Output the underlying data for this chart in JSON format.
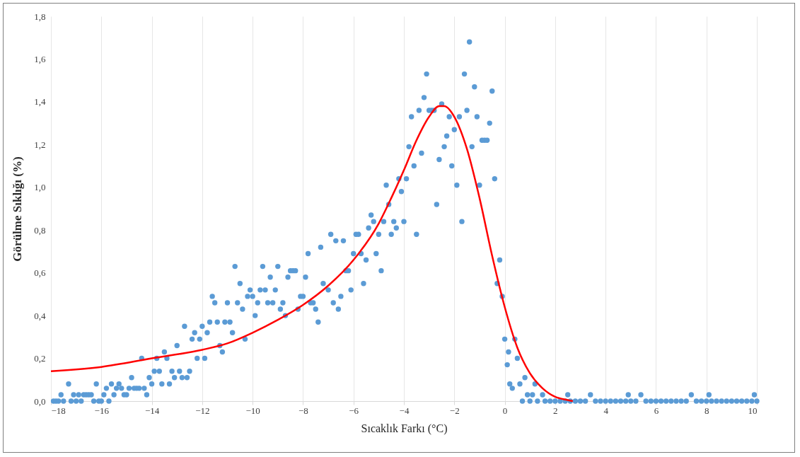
{
  "chart_data": {
    "type": "scatter",
    "xlabel": "Sıcaklık Farkı (°C)",
    "ylabel": "Görülme  Sıklığı (%)",
    "xlim": [
      -18,
      10
    ],
    "xticks": [
      -18,
      -16,
      -14,
      -12,
      -10,
      -8,
      -6,
      -4,
      -2,
      0,
      2,
      4,
      6,
      8,
      10
    ],
    "ylim": [
      0,
      1.8
    ],
    "yticks": [
      {
        "value": 0,
        "label": "0,0"
      },
      {
        "value": 0.2,
        "label": "0,2"
      },
      {
        "value": 0.4,
        "label": "0,4"
      },
      {
        "value": 0.6,
        "label": "0,6"
      },
      {
        "value": 0.8,
        "label": "0,8"
      },
      {
        "value": 1.0,
        "label": "1,0"
      },
      {
        "value": 1.2,
        "label": "1,2"
      },
      {
        "value": 1.4,
        "label": "1,4"
      },
      {
        "value": 1.6,
        "label": "1,6"
      },
      {
        "value": 1.8,
        "label": "1,8"
      }
    ],
    "grid": "x",
    "series": [
      {
        "color": "#5b9bd5",
        "marker": "circle",
        "x": [
          -17.9,
          -17.8,
          -17.7,
          -17.6,
          -17.5,
          -17.3,
          -17.2,
          -17.1,
          -17.0,
          -16.9,
          -16.8,
          -16.7,
          -16.6,
          -16.5,
          -16.4,
          -16.3,
          -16.2,
          -16.1,
          -16.0,
          -15.9,
          -15.8,
          -15.7,
          -15.6,
          -15.5,
          -15.4,
          -15.3,
          -15.2,
          -15.1,
          -15.0,
          -14.9,
          -14.8,
          -14.7,
          -14.6,
          -14.5,
          -14.4,
          -14.3,
          -14.2,
          -14.1,
          -14.0,
          -13.9,
          -13.8,
          -13.7,
          -13.6,
          -13.5,
          -13.4,
          -13.3,
          -13.2,
          -13.1,
          -13.0,
          -12.9,
          -12.8,
          -12.7,
          -12.6,
          -12.5,
          -12.4,
          -12.3,
          -12.2,
          -12.1,
          -12.0,
          -11.9,
          -11.8,
          -11.7,
          -11.6,
          -11.5,
          -11.4,
          -11.3,
          -11.2,
          -11.1,
          -11.0,
          -10.9,
          -10.8,
          -10.7,
          -10.6,
          -10.5,
          -10.4,
          -10.3,
          -10.2,
          -10.1,
          -10.0,
          -9.9,
          -9.8,
          -9.7,
          -9.6,
          -9.5,
          -9.4,
          -9.3,
          -9.2,
          -9.1,
          -9.0,
          -8.9,
          -8.8,
          -8.7,
          -8.6,
          -8.5,
          -8.4,
          -8.3,
          -8.2,
          -8.1,
          -8.0,
          -7.9,
          -7.8,
          -7.7,
          -7.6,
          -7.5,
          -7.4,
          -7.3,
          -7.2,
          -7.0,
          -6.9,
          -6.8,
          -6.7,
          -6.6,
          -6.5,
          -6.4,
          -6.3,
          -6.2,
          -6.1,
          -6.0,
          -5.9,
          -5.8,
          -5.7,
          -5.6,
          -5.5,
          -5.4,
          -5.3,
          -5.2,
          -5.1,
          -5.0,
          -4.9,
          -4.8,
          -4.7,
          -4.6,
          -4.5,
          -4.4,
          -4.3,
          -4.2,
          -4.1,
          -4.0,
          -3.9,
          -3.8,
          -3.7,
          -3.6,
          -3.5,
          -3.4,
          -3.3,
          -3.2,
          -3.1,
          -3.0,
          -2.9,
          -2.8,
          -2.7,
          -2.6,
          -2.5,
          -2.4,
          -2.3,
          -2.2,
          -2.1,
          -2.0,
          -1.9,
          -1.8,
          -1.7,
          -1.6,
          -1.5,
          -1.4,
          -1.3,
          -1.2,
          -1.1,
          -1.0,
          -0.9,
          -0.8,
          -0.7,
          -0.6,
          -0.5,
          -0.4,
          -0.3,
          -0.2,
          -0.1,
          0.0,
          0.1,
          0.15,
          0.2,
          0.3,
          0.4,
          0.5,
          0.6,
          0.7,
          0.8,
          0.9,
          1.0,
          1.1,
          1.2,
          1.3,
          1.5,
          1.6,
          1.8,
          2.0,
          2.2,
          2.4,
          2.5,
          2.6,
          2.8,
          3.0,
          3.2,
          3.4,
          3.6,
          3.8,
          4.0,
          4.2,
          4.4,
          4.6,
          4.8,
          4.9,
          5.0,
          5.2,
          5.4,
          5.6,
          5.8,
          6.0,
          6.2,
          6.4,
          6.6,
          6.8,
          7.0,
          7.2,
          7.4,
          7.6,
          7.8,
          8.0,
          8.1,
          8.2,
          8.4,
          8.6,
          8.8,
          9.0,
          9.2,
          9.4,
          9.6,
          9.8,
          9.9,
          10.0
        ],
        "values": [
          0,
          0,
          0,
          0.03,
          0,
          0.08,
          0,
          0.03,
          0,
          0.03,
          0,
          0.03,
          0.03,
          0.03,
          0.03,
          0,
          0.08,
          0,
          0,
          0.03,
          0.06,
          0,
          0.08,
          0.03,
          0.06,
          0.08,
          0.06,
          0.03,
          0.03,
          0.06,
          0.11,
          0.06,
          0.06,
          0.06,
          0.2,
          0.06,
          0.03,
          0.11,
          0.08,
          0.14,
          0.2,
          0.14,
          0.08,
          0.23,
          0.2,
          0.08,
          0.14,
          0.11,
          0.26,
          0.14,
          0.11,
          0.35,
          0.11,
          0.14,
          0.29,
          0.32,
          0.2,
          0.29,
          0.35,
          0.2,
          0.32,
          0.37,
          0.49,
          0.46,
          0.37,
          0.26,
          0.23,
          0.37,
          0.46,
          0.37,
          0.32,
          0.63,
          0.46,
          0.55,
          0.43,
          0.29,
          0.49,
          0.52,
          0.49,
          0.4,
          0.46,
          0.52,
          0.63,
          0.52,
          0.46,
          0.58,
          0.46,
          0.52,
          0.63,
          0.43,
          0.46,
          0.4,
          0.58,
          0.61,
          0.61,
          0.61,
          0.43,
          0.49,
          0.49,
          0.58,
          0.69,
          0.46,
          0.46,
          0.43,
          0.37,
          0.72,
          0.55,
          0.52,
          0.78,
          0.46,
          0.75,
          0.43,
          0.49,
          0.75,
          0.61,
          0.61,
          0.52,
          0.69,
          0.78,
          0.78,
          0.69,
          0.55,
          0.66,
          0.81,
          0.87,
          0.84,
          0.69,
          0.78,
          0.61,
          0.84,
          1.01,
          0.92,
          0.78,
          0.84,
          0.81,
          1.04,
          0.98,
          0.84,
          1.04,
          1.19,
          1.33,
          1.1,
          0.78,
          1.36,
          1.16,
          1.42,
          1.53,
          1.36,
          1.36,
          1.36,
          0.92,
          1.13,
          1.39,
          1.19,
          1.24,
          1.33,
          1.1,
          1.27,
          1.01,
          1.33,
          0.84,
          1.53,
          1.36,
          1.68,
          1.19,
          1.47,
          1.33,
          1.01,
          1.22,
          1.22,
          1.22,
          1.3,
          1.45,
          1.04,
          0.55,
          0.66,
          0.49,
          0.29,
          0.17,
          0.23,
          0.08,
          0.06,
          0.29,
          0.2,
          0.08,
          0,
          0.11,
          0.03,
          0,
          0.03,
          0.08,
          0,
          0.03,
          0,
          0,
          0,
          0,
          0,
          0.03,
          0,
          0,
          0,
          0,
          0.03,
          0,
          0,
          0,
          0,
          0,
          0,
          0,
          0.03,
          0,
          0,
          0.03,
          0,
          0,
          0,
          0,
          0,
          0,
          0,
          0,
          0,
          0.03,
          0,
          0,
          0,
          0.03,
          0,
          0,
          0,
          0,
          0,
          0,
          0,
          0,
          0,
          0.03,
          0
        ]
      },
      {
        "type": "line",
        "color": "#ff0000",
        "marker": "none",
        "x": [
          -18,
          -16,
          -14,
          -12,
          -11,
          -10,
          -9,
          -8,
          -7,
          -6,
          -5,
          -4.5,
          -4,
          -3.5,
          -3,
          -2.6,
          -2.4,
          -2,
          -1.5,
          -1,
          -0.5,
          0,
          0.5,
          1,
          1.5,
          2,
          2.5,
          2.7
        ],
        "values": [
          0.14,
          0.16,
          0.2,
          0.24,
          0.27,
          0.32,
          0.38,
          0.45,
          0.54,
          0.66,
          0.83,
          0.95,
          1.08,
          1.22,
          1.33,
          1.38,
          1.38,
          1.33,
          1.18,
          0.95,
          0.68,
          0.44,
          0.25,
          0.13,
          0.06,
          0.02,
          0.005,
          0
        ]
      }
    ]
  }
}
